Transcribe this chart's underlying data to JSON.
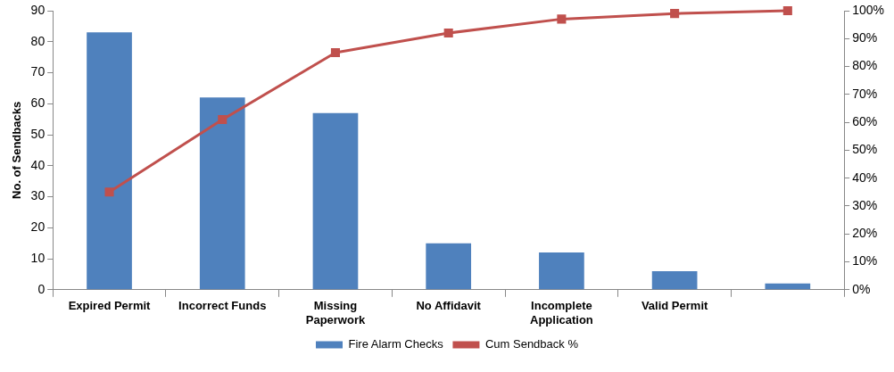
{
  "chart_data": {
    "type": "bar",
    "ylabel": "No. of Sendbacks",
    "categories": [
      "Expired Permit",
      "Incorrect Funds",
      "Missing Paperwork",
      "No Affidavit",
      "Incomplete Application",
      "Valid Permit",
      null
    ],
    "series": [
      {
        "name": "Fire Alarm Checks",
        "color": "#4f81bd",
        "values": [
          83,
          62,
          57,
          15,
          12,
          6,
          2
        ]
      },
      {
        "name": "Cum Sendback %",
        "type": "line",
        "axis": "y2",
        "color": "#c0504d",
        "marker": "square",
        "values": [
          35,
          61,
          85,
          92,
          97,
          99,
          100
        ]
      }
    ],
    "ylim": [
      0,
      90
    ],
    "yticks": [
      0,
      10,
      20,
      30,
      40,
      50,
      60,
      70,
      80,
      90
    ],
    "y2lim": [
      0,
      100
    ],
    "y2ticks": [
      {
        "value": 0,
        "label": "0%"
      },
      {
        "value": 10,
        "label": "10%"
      },
      {
        "value": 20,
        "label": "20%"
      },
      {
        "value": 30,
        "label": "30%"
      },
      {
        "value": 40,
        "label": "40%"
      },
      {
        "value": 50,
        "label": "50%"
      },
      {
        "value": 60,
        "label": "60%"
      },
      {
        "value": 70,
        "label": "70%"
      },
      {
        "value": 80,
        "label": "80%"
      },
      {
        "value": 90,
        "label": "90%"
      },
      {
        "value": 100,
        "label": "100%"
      }
    ],
    "grid": false,
    "legend": "bottom"
  }
}
